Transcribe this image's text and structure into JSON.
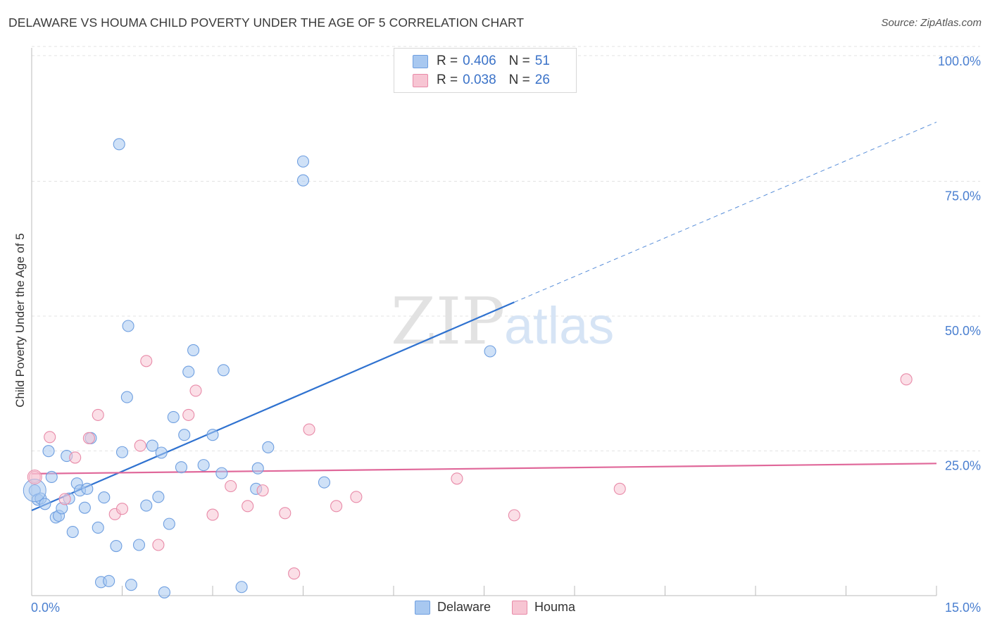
{
  "title": "DELAWARE VS HOUMA CHILD POVERTY UNDER THE AGE OF 5 CORRELATION CHART",
  "source": "Source: ZipAtlas.com",
  "watermark": {
    "zip": "ZIP",
    "atlas": "atlas"
  },
  "legend": {
    "rows": [
      {
        "r_label": "R =",
        "r_value": "0.406",
        "n_label": "N =",
        "n_value": "51",
        "color": "#a8c8f0",
        "border": "#6f9fe0"
      },
      {
        "r_label": "R =",
        "r_value": "0.038",
        "n_label": "N =",
        "n_value": "26",
        "color": "#f7c5d3",
        "border": "#e88aa8"
      }
    ]
  },
  "chart_data": {
    "type": "scatter",
    "title": "DELAWARE VS HOUMA CHILD POVERTY UNDER THE AGE OF 5 CORRELATION CHART",
    "xlabel": "",
    "ylabel": "Child Poverty Under the Age of 5",
    "xlim": [
      0,
      15
    ],
    "ylim": [
      0,
      100
    ],
    "x_ticks": [
      "0.0%",
      "15.0%"
    ],
    "y_ticks": [
      "25.0%",
      "50.0%",
      "75.0%",
      "100.0%"
    ],
    "y_tick_values": [
      25,
      50,
      75,
      100
    ],
    "grid": true,
    "legend_position": "top-center",
    "series": [
      {
        "name": "Delaware",
        "color": "#a8c8f0",
        "stroke": "#6f9fe0",
        "line_color": "#2f72d0",
        "trend": {
          "x0": 0,
          "y0": 15.8,
          "x1": 8.0,
          "y1": 54.4,
          "x_end": 15,
          "y_end": 87.8
        },
        "points": [
          [
            0.05,
            19.5
          ],
          [
            0.1,
            17.8
          ],
          [
            0.15,
            18.0
          ],
          [
            0.22,
            17.0
          ],
          [
            0.28,
            26.8
          ],
          [
            0.33,
            22.0
          ],
          [
            0.4,
            14.5
          ],
          [
            0.45,
            14.8
          ],
          [
            0.5,
            16.2
          ],
          [
            0.58,
            25.9
          ],
          [
            0.62,
            18.0
          ],
          [
            0.68,
            11.8
          ],
          [
            0.75,
            20.8
          ],
          [
            0.8,
            19.5
          ],
          [
            0.88,
            16.3
          ],
          [
            0.92,
            19.8
          ],
          [
            0.98,
            29.2
          ],
          [
            1.1,
            12.6
          ],
          [
            1.15,
            2.5
          ],
          [
            1.2,
            18.2
          ],
          [
            1.28,
            2.7
          ],
          [
            1.4,
            9.2
          ],
          [
            1.45,
            83.7
          ],
          [
            1.5,
            26.6
          ],
          [
            1.58,
            36.8
          ],
          [
            1.6,
            50.0
          ],
          [
            1.65,
            2.0
          ],
          [
            1.78,
            9.4
          ],
          [
            1.9,
            16.7
          ],
          [
            2.0,
            27.8
          ],
          [
            2.1,
            18.3
          ],
          [
            2.15,
            26.5
          ],
          [
            2.2,
            0.6
          ],
          [
            2.28,
            13.3
          ],
          [
            2.35,
            33.1
          ],
          [
            2.48,
            23.8
          ],
          [
            2.53,
            29.8
          ],
          [
            2.6,
            41.5
          ],
          [
            2.68,
            45.5
          ],
          [
            2.85,
            24.2
          ],
          [
            3.0,
            29.8
          ],
          [
            3.15,
            22.7
          ],
          [
            3.18,
            41.8
          ],
          [
            3.48,
            1.6
          ],
          [
            3.72,
            19.8
          ],
          [
            3.75,
            23.6
          ],
          [
            3.92,
            27.5
          ],
          [
            4.5,
            80.5
          ],
          [
            4.5,
            77.0
          ],
          [
            4.85,
            21.0
          ],
          [
            7.6,
            45.3
          ]
        ]
      },
      {
        "name": "Houma",
        "color": "#f7c5d3",
        "stroke": "#e88aa8",
        "line_color": "#e0689a",
        "trend": {
          "x0": 0,
          "y0": 22.6,
          "x1": 15,
          "y1": 24.5
        },
        "points": [
          [
            0.05,
            22.0
          ],
          [
            0.3,
            29.4
          ],
          [
            0.55,
            17.9
          ],
          [
            0.72,
            25.6
          ],
          [
            0.95,
            29.2
          ],
          [
            1.1,
            33.5
          ],
          [
            1.38,
            15.1
          ],
          [
            1.5,
            16.1
          ],
          [
            1.8,
            27.8
          ],
          [
            1.9,
            43.5
          ],
          [
            2.1,
            9.4
          ],
          [
            2.6,
            33.5
          ],
          [
            2.72,
            38.0
          ],
          [
            3.0,
            15.0
          ],
          [
            3.3,
            20.3
          ],
          [
            3.58,
            16.6
          ],
          [
            3.83,
            19.5
          ],
          [
            4.2,
            15.3
          ],
          [
            4.35,
            4.1
          ],
          [
            4.6,
            30.8
          ],
          [
            5.05,
            16.6
          ],
          [
            5.38,
            18.3
          ],
          [
            7.05,
            21.7
          ],
          [
            8.0,
            14.9
          ],
          [
            9.75,
            19.8
          ],
          [
            14.5,
            40.1
          ]
        ]
      }
    ]
  }
}
